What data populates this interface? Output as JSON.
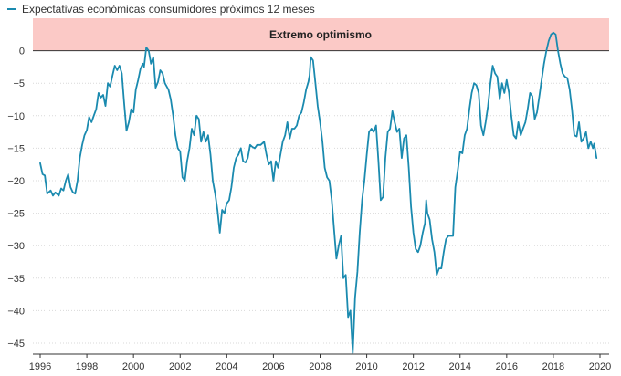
{
  "chart_data": {
    "type": "line",
    "title": "",
    "xlabel": "",
    "ylabel": "",
    "xlim": [
      1996,
      2020
    ],
    "ylim": [
      -47,
      5
    ],
    "x_ticks": [
      "1996",
      "1998",
      "2000",
      "2002",
      "2004",
      "2006",
      "2008",
      "2010",
      "2012",
      "2014",
      "2016",
      "2018",
      "2020"
    ],
    "y_ticks": [
      "0",
      "-5",
      "-10",
      "-15",
      "-20",
      "-25",
      "-30",
      "-35",
      "-40",
      "-45"
    ],
    "band": {
      "label": "Extremo optimismo",
      "from": 0,
      "to": 5,
      "color": "#fbc9c6"
    },
    "series": [
      {
        "name": "Expectativas económicas consumidores próximos 12 meses",
        "color": "#1a8aaf",
        "points": [
          [
            1996.0,
            -17.3
          ],
          [
            1996.1,
            -19.0
          ],
          [
            1996.2,
            -19.2
          ],
          [
            1996.3,
            -22.0
          ],
          [
            1996.45,
            -21.5
          ],
          [
            1996.55,
            -22.3
          ],
          [
            1996.65,
            -21.8
          ],
          [
            1996.8,
            -22.3
          ],
          [
            1996.9,
            -21.2
          ],
          [
            1997.0,
            -21.5
          ],
          [
            1997.1,
            -20.0
          ],
          [
            1997.2,
            -19.0
          ],
          [
            1997.3,
            -21.0
          ],
          [
            1997.4,
            -21.8
          ],
          [
            1997.5,
            -22.0
          ],
          [
            1997.6,
            -20.0
          ],
          [
            1997.7,
            -16.5
          ],
          [
            1997.8,
            -14.5
          ],
          [
            1997.9,
            -13.0
          ],
          [
            1998.0,
            -12.2
          ],
          [
            1998.1,
            -10.2
          ],
          [
            1998.2,
            -11.0
          ],
          [
            1998.3,
            -10.0
          ],
          [
            1998.4,
            -9.0
          ],
          [
            1998.5,
            -6.5
          ],
          [
            1998.6,
            -7.2
          ],
          [
            1998.7,
            -6.8
          ],
          [
            1998.8,
            -8.5
          ],
          [
            1998.9,
            -5.0
          ],
          [
            1999.0,
            -5.5
          ],
          [
            1999.1,
            -3.8
          ],
          [
            1999.2,
            -2.3
          ],
          [
            1999.3,
            -3.0
          ],
          [
            1999.4,
            -2.3
          ],
          [
            1999.5,
            -3.5
          ],
          [
            1999.6,
            -8.0
          ],
          [
            1999.7,
            -12.3
          ],
          [
            1999.8,
            -11.0
          ],
          [
            1999.9,
            -9.0
          ],
          [
            2000.0,
            -9.5
          ],
          [
            2000.1,
            -6.0
          ],
          [
            2000.2,
            -4.5
          ],
          [
            2000.3,
            -2.8
          ],
          [
            2000.4,
            -2.0
          ],
          [
            2000.45,
            -2.5
          ],
          [
            2000.55,
            0.5
          ],
          [
            2000.65,
            0.0
          ],
          [
            2000.75,
            -2.0
          ],
          [
            2000.85,
            -1.0
          ],
          [
            2000.95,
            -5.7
          ],
          [
            2001.05,
            -4.8
          ],
          [
            2001.15,
            -3.0
          ],
          [
            2001.25,
            -3.5
          ],
          [
            2001.35,
            -5.0
          ],
          [
            2001.5,
            -6.0
          ],
          [
            2001.6,
            -7.5
          ],
          [
            2001.7,
            -10.0
          ],
          [
            2001.8,
            -13.0
          ],
          [
            2001.9,
            -15.0
          ],
          [
            2002.0,
            -15.5
          ],
          [
            2002.1,
            -19.5
          ],
          [
            2002.2,
            -20.0
          ],
          [
            2002.3,
            -17.0
          ],
          [
            2002.4,
            -15.0
          ],
          [
            2002.5,
            -12.0
          ],
          [
            2002.6,
            -13.0
          ],
          [
            2002.7,
            -10.0
          ],
          [
            2002.8,
            -10.5
          ],
          [
            2002.9,
            -14.0
          ],
          [
            2003.0,
            -12.5
          ],
          [
            2003.1,
            -14.0
          ],
          [
            2003.2,
            -13.0
          ],
          [
            2003.3,
            -16.0
          ],
          [
            2003.4,
            -20.0
          ],
          [
            2003.5,
            -22.0
          ],
          [
            2003.6,
            -24.5
          ],
          [
            2003.7,
            -28.0
          ],
          [
            2003.8,
            -24.5
          ],
          [
            2003.9,
            -25.0
          ],
          [
            2004.0,
            -23.5
          ],
          [
            2004.1,
            -23.0
          ],
          [
            2004.2,
            -21.0
          ],
          [
            2004.3,
            -18.0
          ],
          [
            2004.4,
            -16.5
          ],
          [
            2004.5,
            -16.0
          ],
          [
            2004.6,
            -15.0
          ],
          [
            2004.7,
            -17.0
          ],
          [
            2004.8,
            -17.2
          ],
          [
            2004.9,
            -16.5
          ],
          [
            2005.0,
            -14.5
          ],
          [
            2005.1,
            -14.8
          ],
          [
            2005.2,
            -15.0
          ],
          [
            2005.3,
            -14.5
          ],
          [
            2005.45,
            -14.5
          ],
          [
            2005.6,
            -14.0
          ],
          [
            2005.7,
            -16.0
          ],
          [
            2005.8,
            -17.5
          ],
          [
            2005.9,
            -17.0
          ],
          [
            2006.0,
            -20.0
          ],
          [
            2006.1,
            -17.0
          ],
          [
            2006.2,
            -18.0
          ],
          [
            2006.3,
            -16.0
          ],
          [
            2006.4,
            -14.0
          ],
          [
            2006.5,
            -13.0
          ],
          [
            2006.6,
            -11.0
          ],
          [
            2006.7,
            -13.5
          ],
          [
            2006.8,
            -12.0
          ],
          [
            2006.9,
            -12.0
          ],
          [
            2007.0,
            -11.5
          ],
          [
            2007.1,
            -10.0
          ],
          [
            2007.2,
            -9.5
          ],
          [
            2007.3,
            -8.0
          ],
          [
            2007.4,
            -6.0
          ],
          [
            2007.5,
            -4.8
          ],
          [
            2007.55,
            -3.8
          ],
          [
            2007.6,
            -1.0
          ],
          [
            2007.7,
            -1.5
          ],
          [
            2007.8,
            -5.0
          ],
          [
            2007.9,
            -8.5
          ],
          [
            2008.0,
            -11.0
          ],
          [
            2008.1,
            -14.0
          ],
          [
            2008.2,
            -18.0
          ],
          [
            2008.3,
            -19.5
          ],
          [
            2008.4,
            -20.0
          ],
          [
            2008.5,
            -23.0
          ],
          [
            2008.6,
            -27.5
          ],
          [
            2008.7,
            -32.0
          ],
          [
            2008.8,
            -30.0
          ],
          [
            2008.9,
            -28.5
          ],
          [
            2009.0,
            -35.0
          ],
          [
            2009.1,
            -34.5
          ],
          [
            2009.2,
            -41.0
          ],
          [
            2009.3,
            -40.0
          ],
          [
            2009.4,
            -46.5
          ],
          [
            2009.5,
            -38.0
          ],
          [
            2009.6,
            -34.0
          ],
          [
            2009.7,
            -28.0
          ],
          [
            2009.8,
            -23.0
          ],
          [
            2009.9,
            -20.0
          ],
          [
            2010.0,
            -16.0
          ],
          [
            2010.1,
            -12.5
          ],
          [
            2010.2,
            -12.0
          ],
          [
            2010.3,
            -12.5
          ],
          [
            2010.4,
            -11.5
          ],
          [
            2010.5,
            -17.0
          ],
          [
            2010.6,
            -23.0
          ],
          [
            2010.7,
            -22.5
          ],
          [
            2010.8,
            -16.5
          ],
          [
            2010.9,
            -12.5
          ],
          [
            2011.0,
            -12.0
          ],
          [
            2011.1,
            -9.3
          ],
          [
            2011.2,
            -11.0
          ],
          [
            2011.3,
            -12.5
          ],
          [
            2011.4,
            -12.0
          ],
          [
            2011.5,
            -16.5
          ],
          [
            2011.6,
            -13.5
          ],
          [
            2011.7,
            -13.0
          ],
          [
            2011.8,
            -18.0
          ],
          [
            2011.9,
            -24.0
          ],
          [
            2012.0,
            -28.0
          ],
          [
            2012.1,
            -30.5
          ],
          [
            2012.2,
            -31.0
          ],
          [
            2012.3,
            -30.0
          ],
          [
            2012.4,
            -28.0
          ],
          [
            2012.5,
            -26.5
          ],
          [
            2012.55,
            -23.0
          ],
          [
            2012.6,
            -25.0
          ],
          [
            2012.7,
            -26.0
          ],
          [
            2012.8,
            -29.0
          ],
          [
            2012.9,
            -31.0
          ],
          [
            2013.0,
            -34.5
          ],
          [
            2013.1,
            -33.5
          ],
          [
            2013.2,
            -33.5
          ],
          [
            2013.3,
            -31.0
          ],
          [
            2013.4,
            -29.0
          ],
          [
            2013.5,
            -28.5
          ],
          [
            2013.6,
            -28.5
          ],
          [
            2013.7,
            -28.5
          ],
          [
            2013.8,
            -21.0
          ],
          [
            2013.9,
            -18.5
          ],
          [
            2014.0,
            -15.5
          ],
          [
            2014.1,
            -15.8
          ],
          [
            2014.2,
            -13.0
          ],
          [
            2014.3,
            -12.0
          ],
          [
            2014.4,
            -9.0
          ],
          [
            2014.5,
            -6.5
          ],
          [
            2014.6,
            -5.0
          ],
          [
            2014.7,
            -5.3
          ],
          [
            2014.8,
            -6.5
          ],
          [
            2014.9,
            -11.5
          ],
          [
            2015.0,
            -13.0
          ],
          [
            2015.1,
            -11.0
          ],
          [
            2015.2,
            -8.5
          ],
          [
            2015.3,
            -5.0
          ],
          [
            2015.4,
            -2.3
          ],
          [
            2015.5,
            -3.5
          ],
          [
            2015.6,
            -4.0
          ],
          [
            2015.7,
            -7.5
          ],
          [
            2015.8,
            -5.0
          ],
          [
            2015.9,
            -6.5
          ],
          [
            2016.0,
            -4.5
          ],
          [
            2016.1,
            -6.5
          ],
          [
            2016.2,
            -10.0
          ],
          [
            2016.3,
            -13.0
          ],
          [
            2016.4,
            -13.5
          ],
          [
            2016.5,
            -11.0
          ],
          [
            2016.6,
            -13.0
          ],
          [
            2016.7,
            -12.0
          ],
          [
            2016.8,
            -11.0
          ],
          [
            2016.9,
            -9.0
          ],
          [
            2017.0,
            -6.5
          ],
          [
            2017.1,
            -7.0
          ],
          [
            2017.2,
            -10.5
          ],
          [
            2017.3,
            -9.5
          ],
          [
            2017.4,
            -7.0
          ],
          [
            2017.5,
            -4.5
          ],
          [
            2017.6,
            -2.0
          ],
          [
            2017.7,
            0.0
          ],
          [
            2017.8,
            1.5
          ],
          [
            2017.9,
            2.5
          ],
          [
            2018.0,
            2.8
          ],
          [
            2018.1,
            2.5
          ],
          [
            2018.2,
            0.0
          ],
          [
            2018.3,
            -2.0
          ],
          [
            2018.4,
            -3.5
          ],
          [
            2018.5,
            -4.0
          ],
          [
            2018.6,
            -4.2
          ],
          [
            2018.7,
            -6.0
          ],
          [
            2018.8,
            -9.0
          ],
          [
            2018.9,
            -13.0
          ],
          [
            2019.0,
            -13.2
          ],
          [
            2019.1,
            -11.0
          ],
          [
            2019.2,
            -14.0
          ],
          [
            2019.3,
            -13.5
          ],
          [
            2019.4,
            -12.5
          ],
          [
            2019.5,
            -15.0
          ],
          [
            2019.6,
            -14.0
          ],
          [
            2019.7,
            -15.0
          ],
          [
            2019.75,
            -14.3
          ],
          [
            2019.85,
            -16.5
          ]
        ]
      }
    ]
  }
}
